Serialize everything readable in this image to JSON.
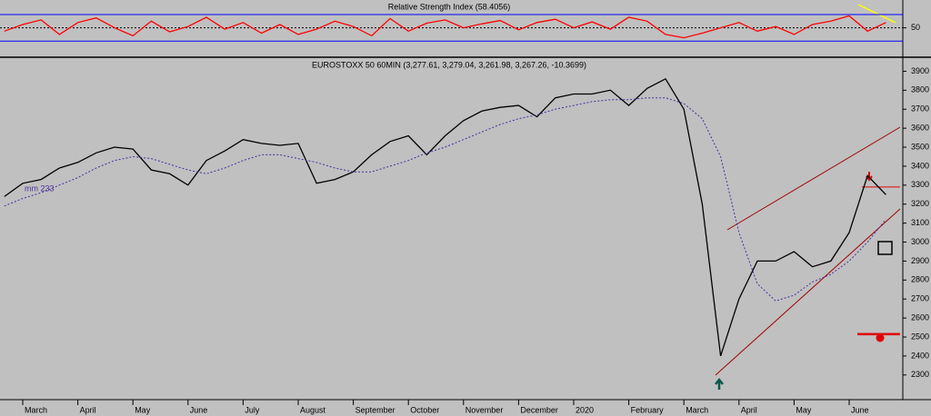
{
  "chart_data": [
    {
      "type": "line",
      "title": "Relative Strength Index (58.4056)",
      "categories": [
        null,
        "March",
        null,
        null,
        "April",
        null,
        null,
        "May",
        null,
        null,
        "June",
        null,
        null,
        "July",
        null,
        null,
        "August",
        null,
        null,
        "September",
        null,
        null,
        "October",
        null,
        null,
        "November",
        null,
        null,
        "December",
        null,
        null,
        "2020",
        null,
        null,
        "February",
        null,
        null,
        "March",
        null,
        null,
        "April",
        null,
        null,
        "May",
        null,
        null,
        "June",
        null,
        null
      ],
      "series": [
        {
          "name": "RSI",
          "color": "#ff0000",
          "values": [
            45,
            55,
            62,
            40,
            58,
            65,
            50,
            38,
            60,
            44,
            52,
            66,
            48,
            58,
            42,
            55,
            40,
            48,
            60,
            52,
            38,
            64,
            45,
            57,
            62,
            50,
            56,
            61,
            47,
            58,
            63,
            50,
            59,
            48,
            66,
            60,
            40,
            35,
            42,
            50,
            58,
            45,
            52,
            40,
            55,
            60,
            68,
            45,
            58
          ]
        }
      ],
      "ylim": [
        7,
        92
      ],
      "yticks": [
        50
      ],
      "reference_lines": [
        30,
        70
      ]
    },
    {
      "type": "line",
      "title": "EUROSTOXX 50 60MIN (3,277.61, 3,279.04, 3,261.98, 3,267.26, -10.3699)",
      "annotation": "mm 233",
      "categories": [
        null,
        "March",
        null,
        null,
        "April",
        null,
        null,
        "May",
        null,
        null,
        "June",
        null,
        null,
        "July",
        null,
        null,
        "August",
        null,
        null,
        "September",
        null,
        null,
        "October",
        null,
        null,
        "November",
        null,
        null,
        "December",
        null,
        null,
        "2020",
        null,
        null,
        "February",
        null,
        null,
        "March",
        null,
        null,
        "April",
        null,
        null,
        "May",
        null,
        null,
        "June",
        null,
        null
      ],
      "series": [
        {
          "name": "EUROSTOXX 50",
          "color": "#000000",
          "values": [
            3240,
            3310,
            3330,
            3390,
            3420,
            3470,
            3500,
            3490,
            3380,
            3360,
            3300,
            3430,
            3480,
            3540,
            3520,
            3510,
            3520,
            3310,
            3330,
            3370,
            3460,
            3530,
            3560,
            3460,
            3560,
            3640,
            3690,
            3710,
            3720,
            3660,
            3760,
            3780,
            3780,
            3800,
            3720,
            3810,
            3860,
            3700,
            3200,
            2400,
            2700,
            2900,
            2900,
            2950,
            2870,
            2900,
            3050,
            3350,
            3250
          ]
        },
        {
          "name": "mm 233",
          "color": "#4b2ea0",
          "dash": true,
          "values": [
            3190,
            3230,
            3260,
            3300,
            3340,
            3390,
            3430,
            3450,
            3440,
            3410,
            3380,
            3360,
            3390,
            3430,
            3460,
            3460,
            3440,
            3420,
            3390,
            3370,
            3370,
            3400,
            3430,
            3470,
            3500,
            3540,
            3580,
            3620,
            3650,
            3670,
            3700,
            3720,
            3740,
            3750,
            3750,
            3760,
            3760,
            3730,
            3650,
            3450,
            3050,
            2780,
            2690,
            2720,
            2790,
            2830,
            2900,
            3000,
            3120
          ]
        }
      ],
      "horizontal_levels": [
        3290,
        2515
      ],
      "ylim": [
        2170,
        3950
      ],
      "yticks": [
        2300,
        2400,
        2500,
        2600,
        2700,
        2800,
        2900,
        3000,
        3100,
        3200,
        3300,
        3400,
        3500,
        3600,
        3700,
        3800,
        3900
      ]
    }
  ]
}
